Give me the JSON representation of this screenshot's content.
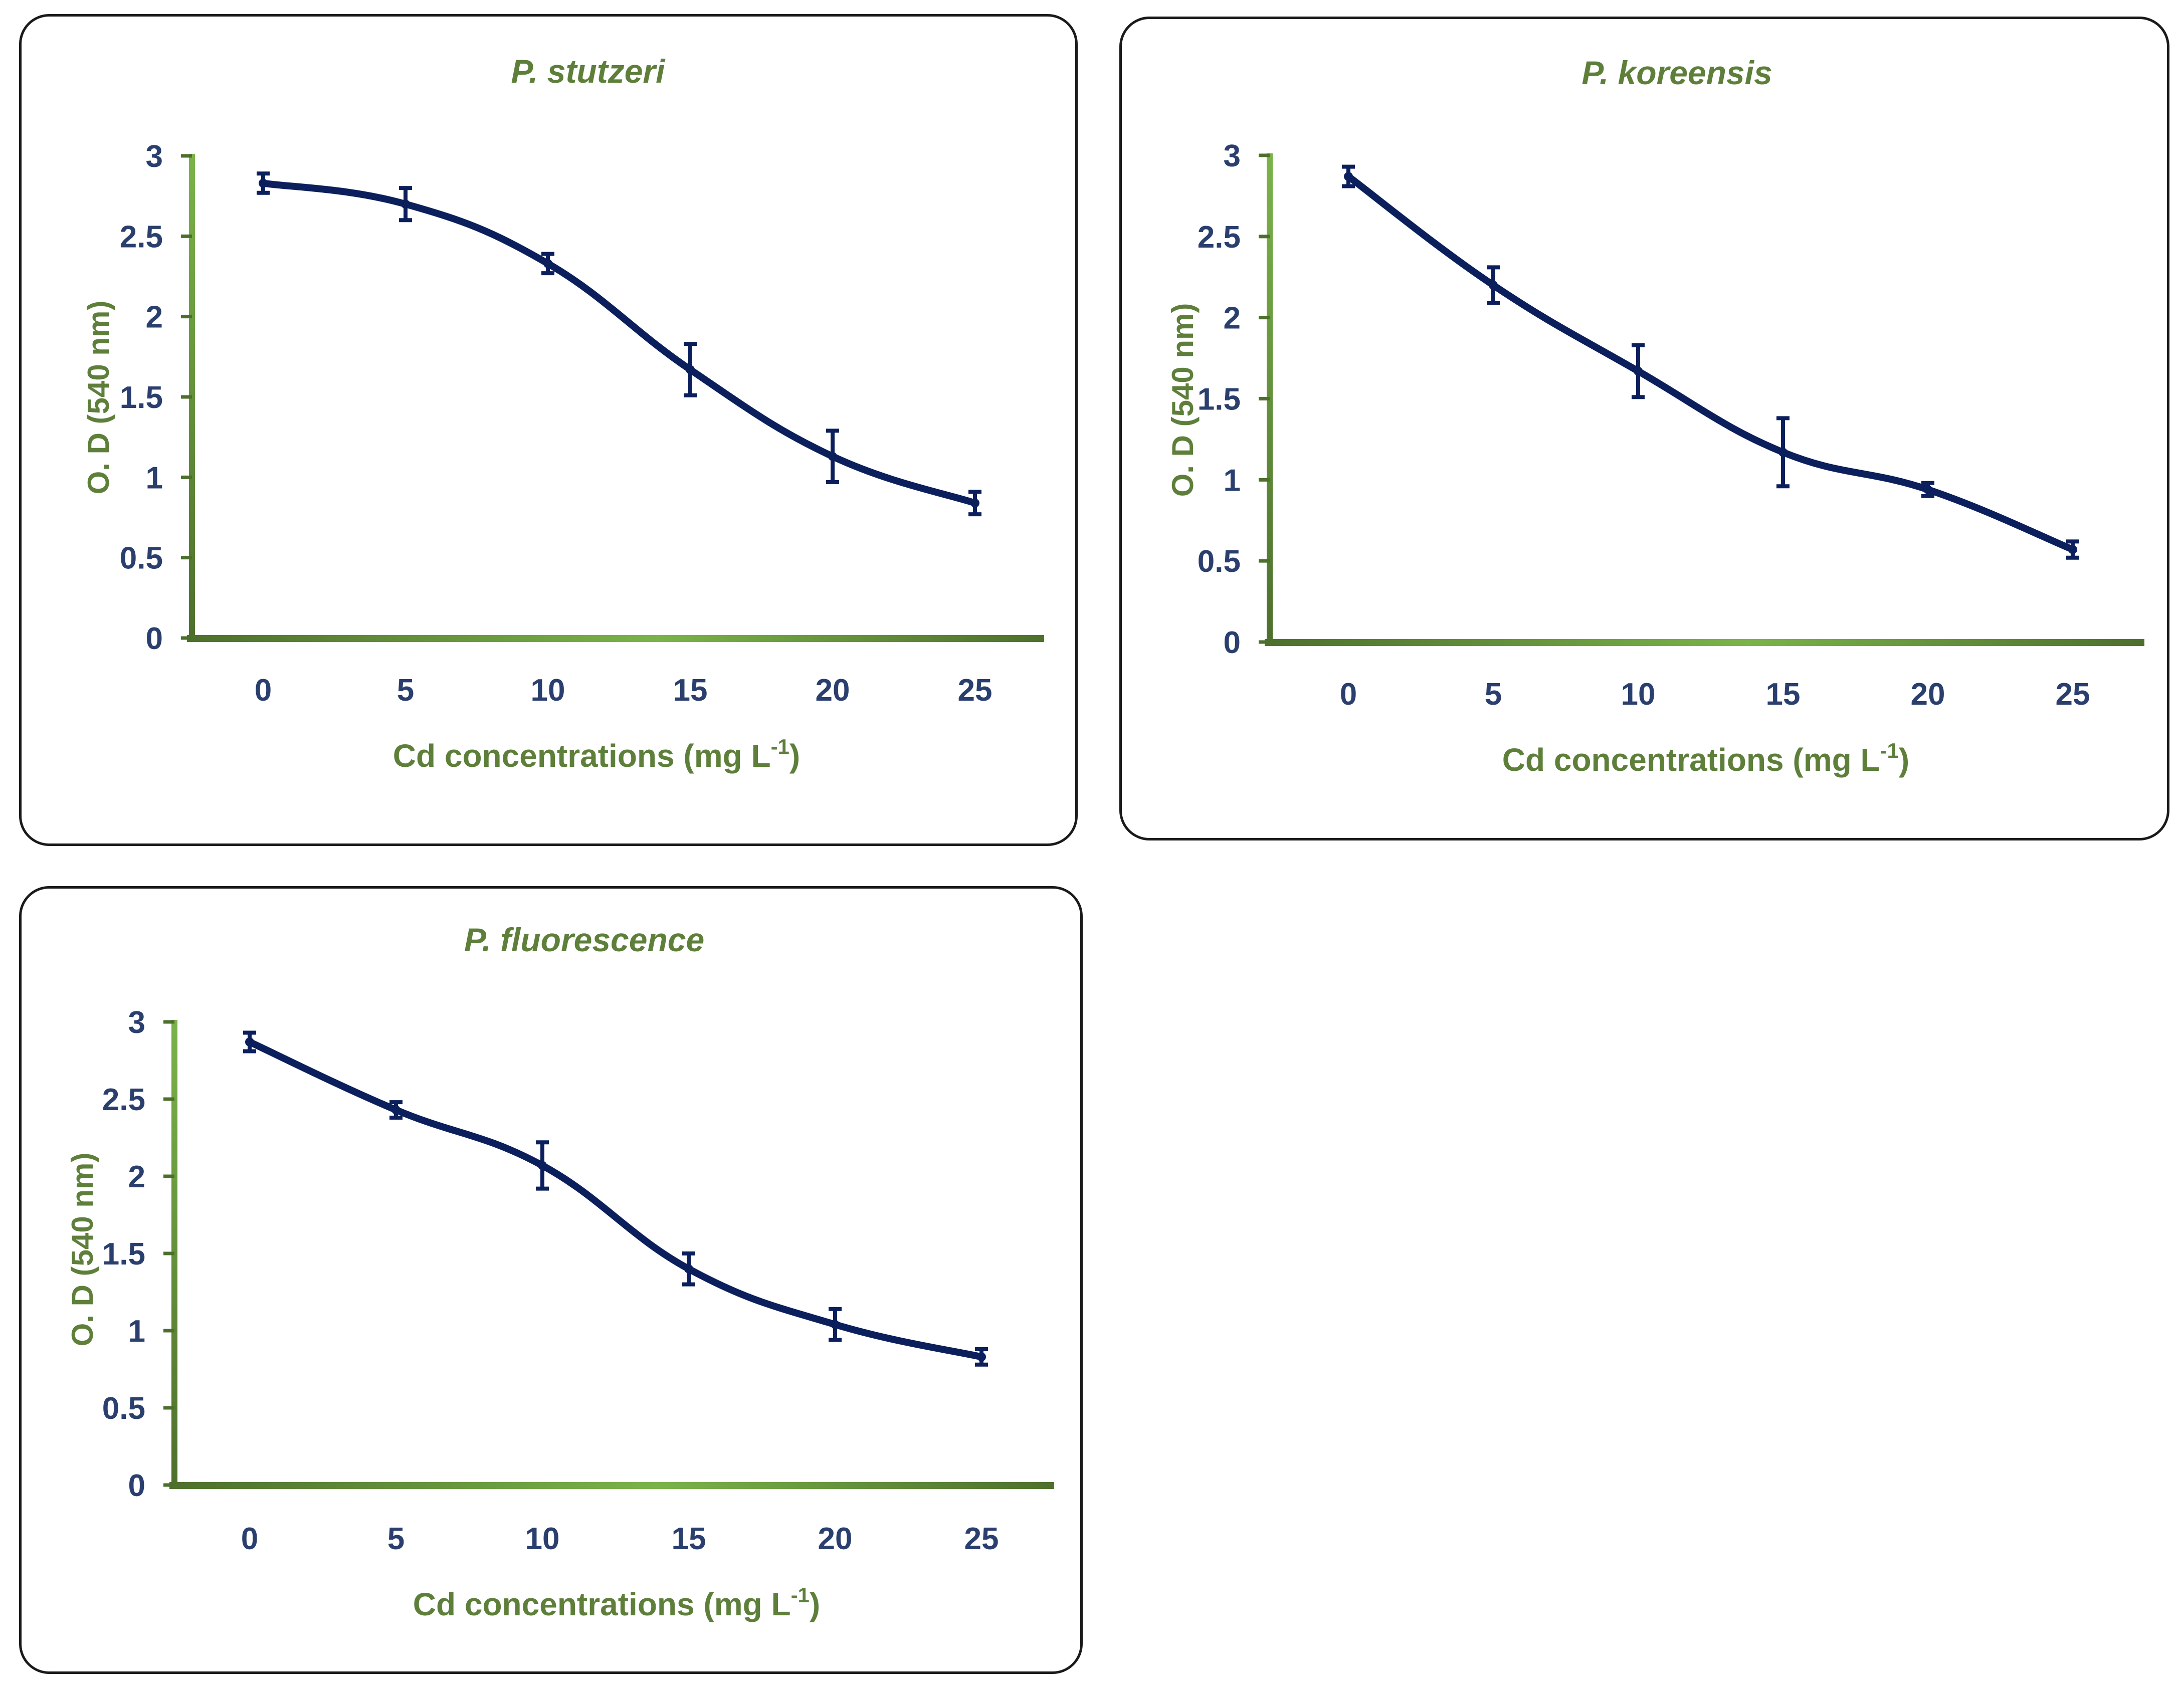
{
  "colors": {
    "line": "#0b1f5c",
    "axis_dark": "#4d6f2c",
    "axis_light": "#7bb34a",
    "title": "#5e7f3a",
    "tick": "#2a3f6e",
    "panel_border": "#1a1a1a"
  },
  "chart_data": [
    {
      "type": "line",
      "title": "P. stutzeri",
      "xlabel": "Cd concentrations  (mg L",
      "xlabel_sup": "-1",
      "xlabel_close": ")",
      "ylabel": "O. D (540 nm)",
      "categories": [
        "0",
        "5",
        "10",
        "15",
        "20",
        "25"
      ],
      "x": [
        0,
        5,
        10,
        15,
        20,
        25
      ],
      "ylim": [
        0,
        3
      ],
      "yticks": [
        "0",
        "0.5",
        "1",
        "1.5",
        "2",
        "2.5",
        "3"
      ],
      "series": [
        {
          "values": [
            2.83,
            2.7,
            2.33,
            1.67,
            1.13,
            0.84
          ],
          "error": [
            0.06,
            0.1,
            0.06,
            0.16,
            0.16,
            0.07
          ]
        }
      ],
      "smooth": true,
      "grid": false,
      "legend": "none"
    },
    {
      "type": "line",
      "title": "P. koreensis",
      "xlabel": "Cd concentrations  (mg L",
      "xlabel_sup": "-1",
      "xlabel_close": ")",
      "ylabel": "O. D (540 nm)",
      "categories": [
        "0",
        "5",
        "10",
        "15",
        "20",
        "25"
      ],
      "x": [
        0,
        5,
        10,
        15,
        20,
        25
      ],
      "ylim": [
        0,
        3
      ],
      "yticks": [
        "0",
        "0.5",
        "1",
        "1.5",
        "2",
        "2.5",
        "3"
      ],
      "series": [
        {
          "values": [
            2.87,
            2.2,
            1.67,
            1.17,
            0.94,
            0.57
          ],
          "error": [
            0.06,
            0.11,
            0.16,
            0.21,
            0.04,
            0.05
          ]
        }
      ],
      "smooth": true,
      "grid": false,
      "legend": "none"
    },
    {
      "type": "line",
      "title": "P. fluorescence",
      "xlabel": "Cd concentrations  (mg L",
      "xlabel_sup": "-1",
      "xlabel_close": ")",
      "ylabel": "O. D (540 nm)",
      "categories": [
        "0",
        "5",
        "10",
        "15",
        "20",
        "25"
      ],
      "x": [
        0,
        5,
        10,
        15,
        20,
        25
      ],
      "ylim": [
        0,
        3
      ],
      "yticks": [
        "0",
        "0.5",
        "1",
        "1.5",
        "2",
        "2.5",
        "3"
      ],
      "series": [
        {
          "values": [
            2.87,
            2.43,
            2.07,
            1.4,
            1.04,
            0.83
          ],
          "error": [
            0.06,
            0.05,
            0.15,
            0.1,
            0.1,
            0.05
          ]
        }
      ],
      "smooth": true,
      "grid": false,
      "legend": "none"
    }
  ]
}
